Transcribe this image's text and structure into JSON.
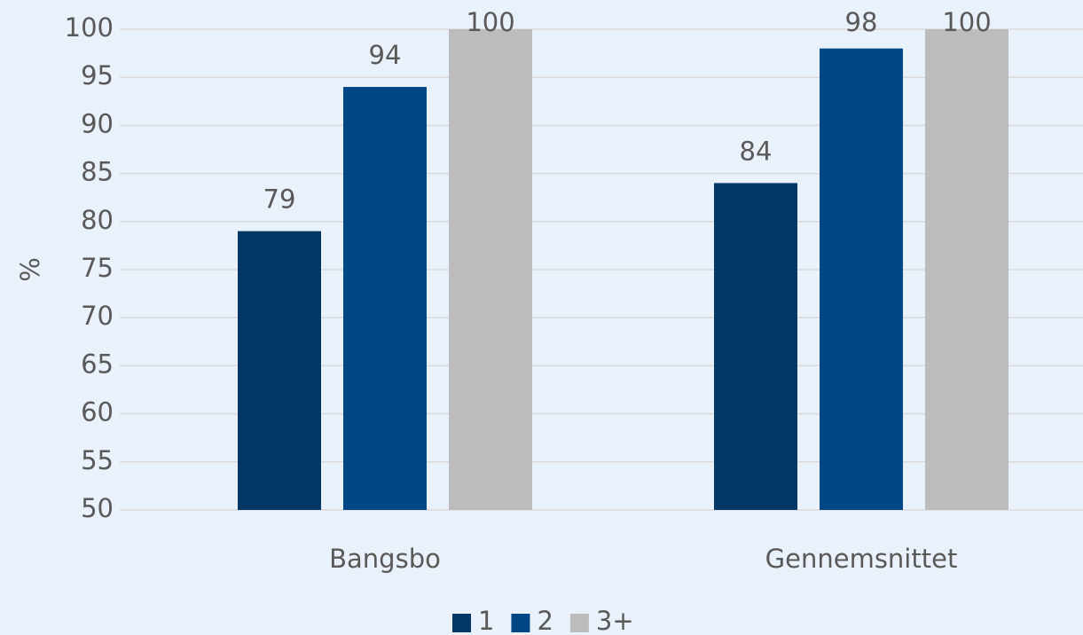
{
  "chart_data": {
    "type": "bar",
    "y_label": "%",
    "categories": [
      "Bangsbo",
      "Gennemsnittet"
    ],
    "series": [
      {
        "name": "1",
        "color": "#003764",
        "values": [
          79,
          84
        ]
      },
      {
        "name": "2",
        "color": "#004785",
        "values": [
          94,
          98
        ]
      },
      {
        "name": "3+",
        "color": "#bcbcbc",
        "values": [
          100,
          100
        ]
      }
    ],
    "ylim": [
      50,
      100
    ],
    "yticks": [
      50,
      55,
      60,
      65,
      70,
      75,
      80,
      85,
      90,
      95,
      100
    ],
    "grid": true,
    "legend": "bottom"
  }
}
